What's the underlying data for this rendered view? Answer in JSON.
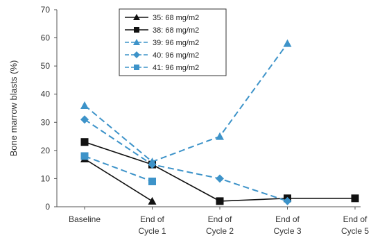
{
  "chart_data": {
    "type": "line",
    "title": "",
    "xlabel": "",
    "ylabel": "Bone marrow blasts (%)",
    "ylim": [
      0,
      70
    ],
    "yticks": [
      0,
      10,
      20,
      30,
      40,
      50,
      60,
      70
    ],
    "grid": false,
    "legend_position": "top-center",
    "categories": [
      [
        "Baseline"
      ],
      [
        "End of",
        "Cycle 1"
      ],
      [
        "End of",
        "Cycle 2"
      ],
      [
        "End of",
        "Cycle 3"
      ],
      [
        "End of",
        "Cycle 5"
      ]
    ],
    "series": [
      {
        "name": "35: 68 mg/m2",
        "color": "#111111",
        "dash": "solid",
        "marker": "triangle",
        "points": [
          [
            0,
            17
          ],
          [
            1,
            2
          ]
        ]
      },
      {
        "name": "38: 68 mg/m2",
        "color": "#111111",
        "dash": "solid",
        "marker": "square",
        "points": [
          [
            0,
            23
          ],
          [
            1,
            15
          ],
          [
            2,
            2
          ],
          [
            3,
            3
          ],
          [
            4,
            3
          ]
        ]
      },
      {
        "name": "39: 96 mg/m2",
        "color": "#3d93c9",
        "dash": "dashed",
        "marker": "triangle",
        "points": [
          [
            0,
            36
          ],
          [
            1,
            16
          ],
          [
            2,
            25
          ],
          [
            3,
            58
          ]
        ]
      },
      {
        "name": "40: 96 mg/m2",
        "color": "#3d93c9",
        "dash": "dashed",
        "marker": "diamond",
        "points": [
          [
            0,
            31
          ],
          [
            1,
            15
          ],
          [
            2,
            10
          ],
          [
            3,
            2
          ]
        ]
      },
      {
        "name": "41: 96 mg/m2",
        "color": "#3d93c9",
        "dash": "dashed",
        "marker": "square",
        "points": [
          [
            0,
            18
          ],
          [
            1,
            9
          ]
        ]
      }
    ]
  }
}
